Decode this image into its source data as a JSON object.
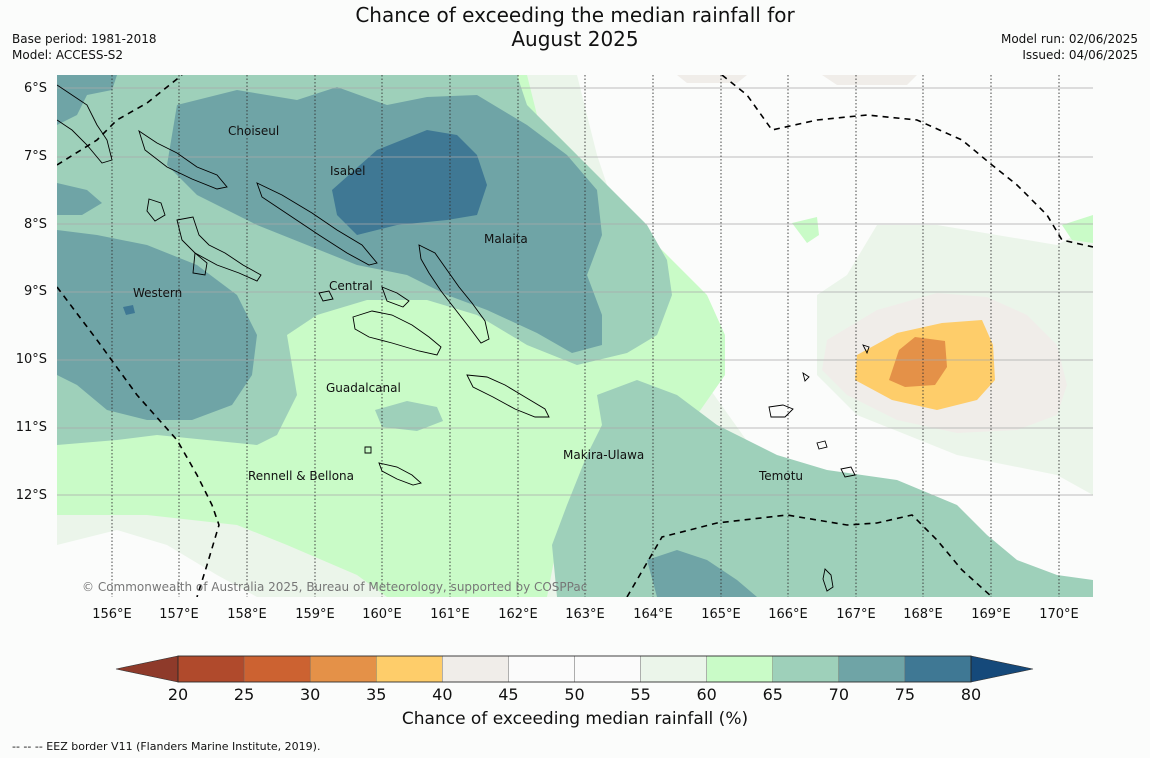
{
  "header": {
    "title_line1": "Chance of exceeding the median rainfall for",
    "title_line2": "August 2025",
    "base_period": "Base period: 1981-2018",
    "model": "Model: ACCESS-S2",
    "model_run": "Model run: 02/06/2025",
    "issued": "Issued: 04/06/2025"
  },
  "map": {
    "lat_labels": [
      "6°S",
      "7°S",
      "8°S",
      "9°S",
      "10°S",
      "11°S",
      "12°S"
    ],
    "lon_labels": [
      "156°E",
      "157°E",
      "158°E",
      "159°E",
      "160°E",
      "161°E",
      "162°E",
      "163°E",
      "164°E",
      "165°E",
      "166°E",
      "167°E",
      "168°E",
      "169°E",
      "170°E"
    ],
    "regions": [
      "Choiseul",
      "Isabel",
      "Malaita",
      "Western",
      "Central",
      "Guadalcanal",
      "Makira-Ulawa",
      "Rennell & Bellona",
      "Temotu"
    ],
    "copyright": "© Commonwealth of Australia 2025, Bureau of Meteorology, supported by COSPPac"
  },
  "colorbar": {
    "ticks": [
      "20",
      "25",
      "30",
      "35",
      "40",
      "45",
      "50",
      "55",
      "60",
      "65",
      "70",
      "75",
      "80"
    ],
    "colors": [
      "#8e3a2a",
      "#b04a2c",
      "#cc6231",
      "#e49148",
      "#fecd6a",
      "#f0ede9",
      "#fbfbfb",
      "#fbfbfb",
      "#ebf5ea",
      "#c9fbc7",
      "#9ed0ba",
      "#6fa4a6",
      "#3f7894",
      "#15497a"
    ],
    "title": "Chance of exceeding median rainfall (%)"
  },
  "footnote": "--  --  -- EEZ border V11 (Flanders Marine Institute, 2019)."
}
